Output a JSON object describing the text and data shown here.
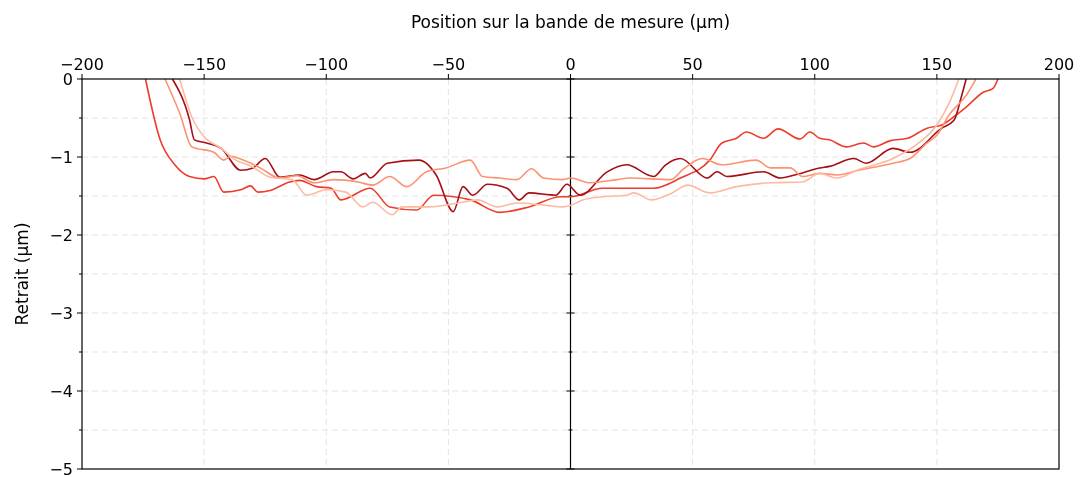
{
  "chart_data": {
    "type": "line",
    "xlabel": "Position sur la bande de mesure (µm)",
    "ylabel": "Retrait (µm)",
    "xlim": [
      -200,
      200
    ],
    "xticks": [
      -200,
      -150,
      -100,
      -50,
      0,
      50,
      100,
      150,
      200
    ],
    "ylim": [
      -5,
      0
    ],
    "yticks": [
      -5,
      {
        "value": -4.5,
        "label": null
      },
      -4,
      {
        "value": -3.5,
        "label": null
      },
      -3,
      {
        "value": -2.5,
        "label": null
      },
      -2,
      {
        "value": -1.5,
        "label": null
      },
      -1,
      {
        "value": -0.5,
        "label": null
      },
      0
    ],
    "grid": true,
    "line_style": "solid",
    "ref_lines": [
      {
        "axis": "x",
        "value": 0,
        "color": "#000000",
        "line_style": "solid"
      }
    ],
    "series": [
      {
        "color": "#ef3b2c",
        "x": [
          -174,
          -168,
          -162,
          -156,
          -150,
          -146,
          -142,
          -135,
          -131,
          -128,
          -123,
          -115,
          -111,
          -104,
          -98,
          -94,
          -82,
          -74,
          -63,
          -56,
          -41,
          -29,
          -17,
          -4,
          0,
          13,
          34,
          45,
          57,
          62,
          68,
          72,
          79,
          85,
          94,
          98,
          102,
          106,
          113,
          120,
          124,
          131,
          138,
          146,
          152,
          158,
          162,
          169,
          173,
          175
        ],
        "values": [
          0,
          -0.78,
          -1.1,
          -1.25,
          -1.28,
          -1.25,
          -1.45,
          -1.42,
          -1.37,
          -1.45,
          -1.43,
          -1.32,
          -1.3,
          -1.38,
          -1.4,
          -1.55,
          -1.4,
          -1.64,
          -1.68,
          -1.49,
          -1.55,
          -1.71,
          -1.64,
          -1.51,
          -1.51,
          -1.4,
          -1.4,
          -1.27,
          -1.04,
          -0.82,
          -0.76,
          -0.68,
          -0.76,
          -0.64,
          -0.77,
          -0.68,
          -0.76,
          -0.78,
          -0.87,
          -0.82,
          -0.87,
          -0.79,
          -0.76,
          -0.63,
          -0.59,
          -0.46,
          -0.36,
          -0.17,
          -0.12,
          0
        ]
      },
      {
        "color": "#a50f15",
        "x": [
          -163,
          -156,
          -154,
          -149,
          -143,
          -135,
          -130,
          -125,
          -119,
          -111,
          -105,
          -97,
          -94,
          -89,
          -84,
          -82,
          -75,
          -62,
          -55,
          -48,
          -44,
          -40,
          -34,
          -26,
          -21,
          -17,
          -6,
          -1.5,
          4,
          15,
          23,
          34,
          39,
          45,
          56,
          60,
          64,
          79,
          86,
          93,
          102,
          106,
          116,
          121,
          132,
          139,
          152,
          157,
          160,
          162
        ],
        "values": [
          0,
          -0.52,
          -0.78,
          -0.82,
          -0.89,
          -1.17,
          -1.14,
          -1.02,
          -1.26,
          -1.23,
          -1.29,
          -1.19,
          -1.19,
          -1.28,
          -1.21,
          -1.27,
          -1.08,
          -1.04,
          -1.23,
          -1.7,
          -1.38,
          -1.49,
          -1.35,
          -1.4,
          -1.55,
          -1.46,
          -1.49,
          -1.35,
          -1.49,
          -1.19,
          -1.1,
          -1.25,
          -1.1,
          -1.02,
          -1.27,
          -1.19,
          -1.25,
          -1.19,
          -1.27,
          -1.22,
          -1.14,
          -1.12,
          -1.02,
          -1.08,
          -0.89,
          -0.94,
          -0.63,
          -0.53,
          -0.23,
          0
        ]
      },
      {
        "color": "#fc9272",
        "x": [
          -166,
          -160,
          -155,
          -146,
          -142,
          -139,
          -134,
          -127,
          -119,
          -112,
          -105,
          -97,
          -87,
          -81,
          -74,
          -67,
          -59,
          -51,
          -41,
          -36,
          -29,
          -22,
          -16,
          -11,
          -3,
          0,
          8,
          19,
          24,
          41,
          46,
          54,
          62,
          76,
          82,
          90,
          95,
          102,
          109,
          118,
          132,
          139,
          146,
          150,
          155,
          162,
          166
        ],
        "values": [
          0,
          -0.44,
          -0.87,
          -0.94,
          -1.04,
          -0.99,
          -1.04,
          -1.14,
          -1.27,
          -1.24,
          -1.33,
          -1.29,
          -1.32,
          -1.36,
          -1.25,
          -1.38,
          -1.19,
          -1.14,
          -1.04,
          -1.25,
          -1.27,
          -1.29,
          -1.15,
          -1.27,
          -1.29,
          -1.27,
          -1.33,
          -1.29,
          -1.27,
          -1.29,
          -1.16,
          -1.02,
          -1.1,
          -1.04,
          -1.14,
          -1.14,
          -1.25,
          -1.21,
          -1.23,
          -1.17,
          -1.08,
          -1.02,
          -0.82,
          -0.72,
          -0.46,
          -0.21,
          0
        ]
      },
      {
        "color": "#fcbba1",
        "x": [
          -160,
          -155,
          -150,
          -143,
          -138,
          -130,
          -123,
          -114,
          -108,
          -100,
          -92,
          -85,
          -81,
          -73,
          -69,
          -58,
          -46,
          -38,
          -30,
          -22,
          -10,
          -3,
          0,
          5,
          13,
          23,
          26,
          33,
          41,
          48,
          57,
          68,
          82,
          95,
          102,
          109,
          118,
          132,
          143,
          150,
          155,
          159
        ],
        "values": [
          0,
          -0.49,
          -0.74,
          -0.89,
          -1.02,
          -1.13,
          -1.26,
          -1.29,
          -1.49,
          -1.42,
          -1.45,
          -1.64,
          -1.58,
          -1.74,
          -1.64,
          -1.64,
          -1.59,
          -1.55,
          -1.64,
          -1.59,
          -1.62,
          -1.64,
          -1.62,
          -1.55,
          -1.51,
          -1.49,
          -1.46,
          -1.55,
          -1.47,
          -1.36,
          -1.46,
          -1.38,
          -1.33,
          -1.32,
          -1.21,
          -1.27,
          -1.16,
          -1.02,
          -0.81,
          -0.59,
          -0.31,
          0
        ]
      }
    ]
  }
}
